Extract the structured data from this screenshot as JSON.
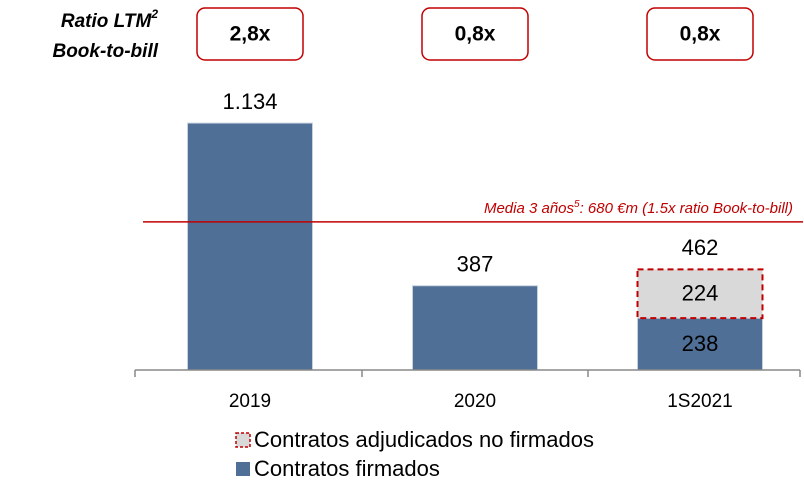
{
  "chart_data": {
    "type": "stacked_bar",
    "ratio_title": {
      "line1": "Ratio LTM",
      "line1_sup": "2",
      "line2": "Book-to-bill"
    },
    "ratios": {
      "values": [
        2.8,
        0.8,
        0.8
      ],
      "value_labels": [
        "2,8x",
        "0,8x",
        "0,8x"
      ]
    },
    "categories": [
      "2019",
      "2020",
      "1S2021"
    ],
    "series": [
      {
        "name": "Contratos firmados",
        "color": "#4f6f96",
        "values": [
          1134,
          387,
          238
        ]
      },
      {
        "name": "Contratos adjudicados no firmados",
        "color": "#d9d9d9",
        "border_color": "#c00000",
        "values": [
          null,
          null,
          224
        ]
      }
    ],
    "totals": {
      "values": [
        1134,
        387,
        462
      ],
      "value_labels": [
        "1.134",
        "387",
        "462"
      ]
    },
    "reference_line": {
      "value": 680,
      "color": "#c00000",
      "label": "Media 3 años",
      "label_sup": "5",
      "label_rest": ": 680 €m (1.5x ratio Book-to-bill)"
    },
    "ylim": [
      0,
      1240
    ],
    "legend": "bottom"
  }
}
